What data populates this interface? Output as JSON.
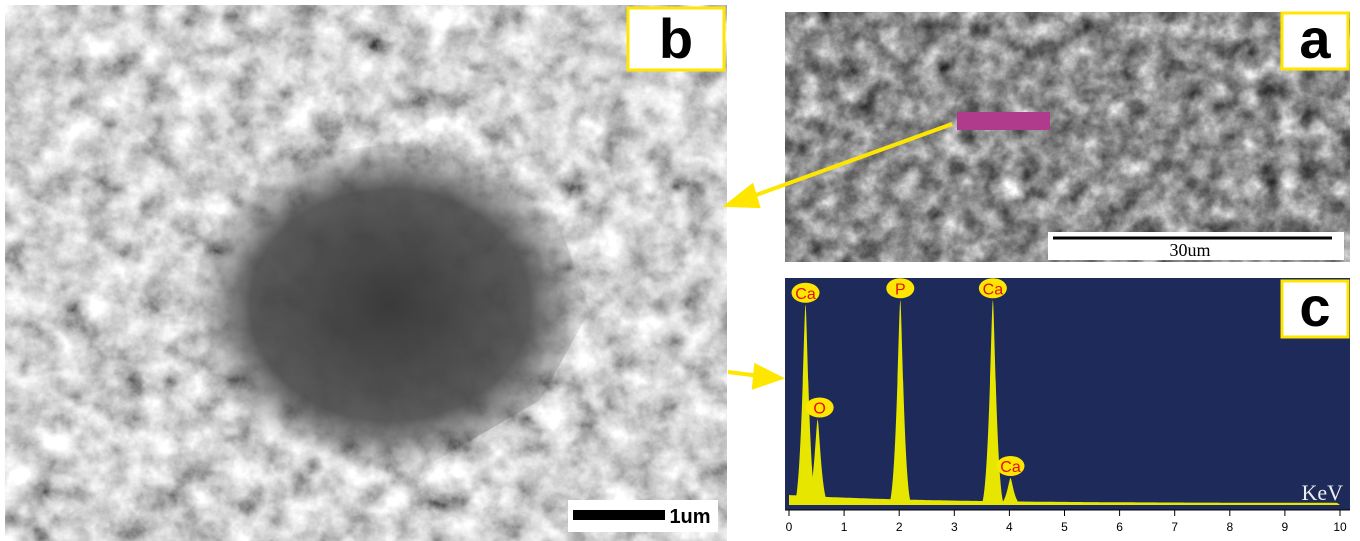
{
  "panels": {
    "b": {
      "label": "b",
      "scale_bar": "1um"
    },
    "a": {
      "label": "a",
      "scale_bar": "30um"
    },
    "c": {
      "label": "c",
      "x_label": "KeV",
      "xlim": [
        0,
        10
      ],
      "xticks": [
        0,
        1,
        2,
        3,
        4,
        5,
        6,
        7,
        8,
        9,
        10
      ],
      "peaks": [
        {
          "label": "Ca",
          "energy": 0.3,
          "height": 89
        },
        {
          "label": "O",
          "energy": 0.52,
          "height": 38
        },
        {
          "label": "P",
          "energy": 2.02,
          "height": 91
        },
        {
          "label": "Ca",
          "energy": 3.7,
          "height": 91
        },
        {
          "label": "Ca",
          "energy": 4.02,
          "height": 12
        }
      ]
    }
  }
}
